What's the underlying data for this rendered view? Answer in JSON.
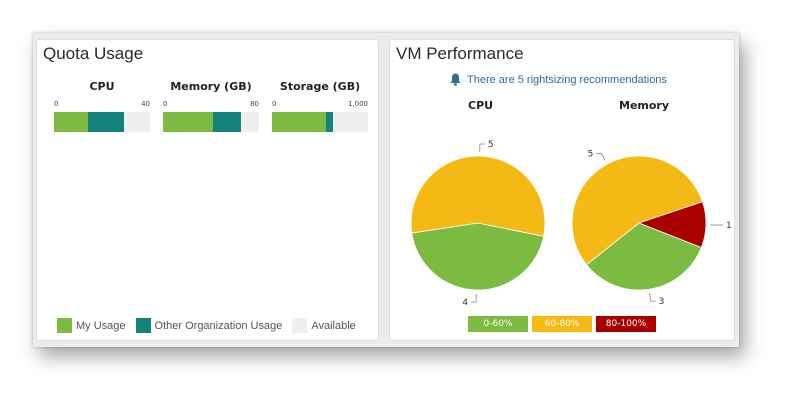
{
  "colors": {
    "my_usage": "#7cba42",
    "other_org_usage": "#12827b",
    "available": "#efefef",
    "range_low": "#7cba42",
    "range_mid": "#f4b915",
    "range_high": "#a80000",
    "notice": "#2e6c9a"
  },
  "quota": {
    "title": "Quota Usage",
    "gauges": [
      {
        "title": "CPU",
        "min_label": "0",
        "max_label": "40",
        "max": 40,
        "my_usage": 14,
        "other_usage": 15
      },
      {
        "title": "Memory (GB)",
        "min_label": "0",
        "max_label": "80",
        "max": 80,
        "my_usage": 42,
        "other_usage": 23
      },
      {
        "title": "Storage (GB)",
        "min_label": "0",
        "max_label": "1,000",
        "max": 1000,
        "my_usage": 560,
        "other_usage": 80
      }
    ],
    "legend": {
      "my_usage": "My Usage",
      "other_usage": "Other Organization Usage",
      "available": "Available"
    }
  },
  "vm": {
    "title": "VM Performance",
    "notice_icon": "bell-icon",
    "notice": "There are 5 rightsizing recommendations",
    "ranges": [
      "0-60%",
      "60-80%",
      "80-100%"
    ]
  },
  "chart_data": [
    {
      "type": "pie",
      "title": "CPU",
      "labels": [
        "0-60%",
        "60-80%"
      ],
      "values": [
        4,
        5
      ]
    },
    {
      "type": "pie",
      "title": "Memory",
      "labels": [
        "0-60%",
        "60-80%",
        "80-100%"
      ],
      "values": [
        3,
        5,
        1
      ]
    }
  ]
}
